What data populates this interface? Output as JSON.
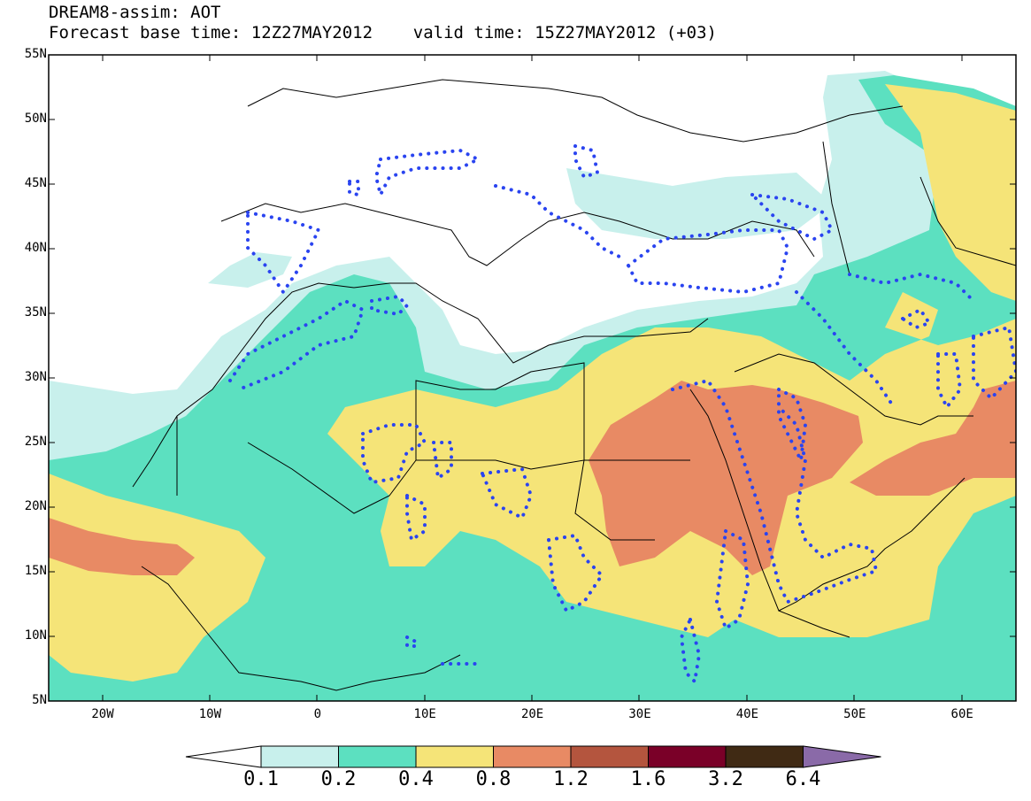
{
  "header": {
    "line1": "DREAM8-assim: AOT",
    "line2": "Forecast base time: 12Z27MAY2012    valid time: 15Z27MAY2012 (+03)"
  },
  "axes": {
    "lat_labels": [
      "55N",
      "50N",
      "45N",
      "40N",
      "35N",
      "30N",
      "25N",
      "20N",
      "15N",
      "10N",
      "5N"
    ],
    "lon_labels": [
      "20W",
      "10W",
      "0",
      "10E",
      "20E",
      "30E",
      "40E",
      "50E",
      "60E"
    ]
  },
  "colorbar": {
    "tick_labels": [
      "0.1",
      "0.2",
      "0.4",
      "0.8",
      "1.2",
      "1.6",
      "3.2",
      "6.4"
    ],
    "colors": [
      "#ffffff",
      "#c8f0ec",
      "#5ce0c0",
      "#f5e478",
      "#e88a64",
      "#b4553e",
      "#7a0028",
      "#402a14",
      "#8a6aa8"
    ]
  },
  "map_colors": {
    "land_outline": "#000000",
    "dotted_contour": "#2a44f0",
    "level_0_1": "#c8f0ec",
    "level_0_2": "#5ce0c0",
    "level_0_4": "#f5e478",
    "level_0_8": "#e88a64"
  }
}
